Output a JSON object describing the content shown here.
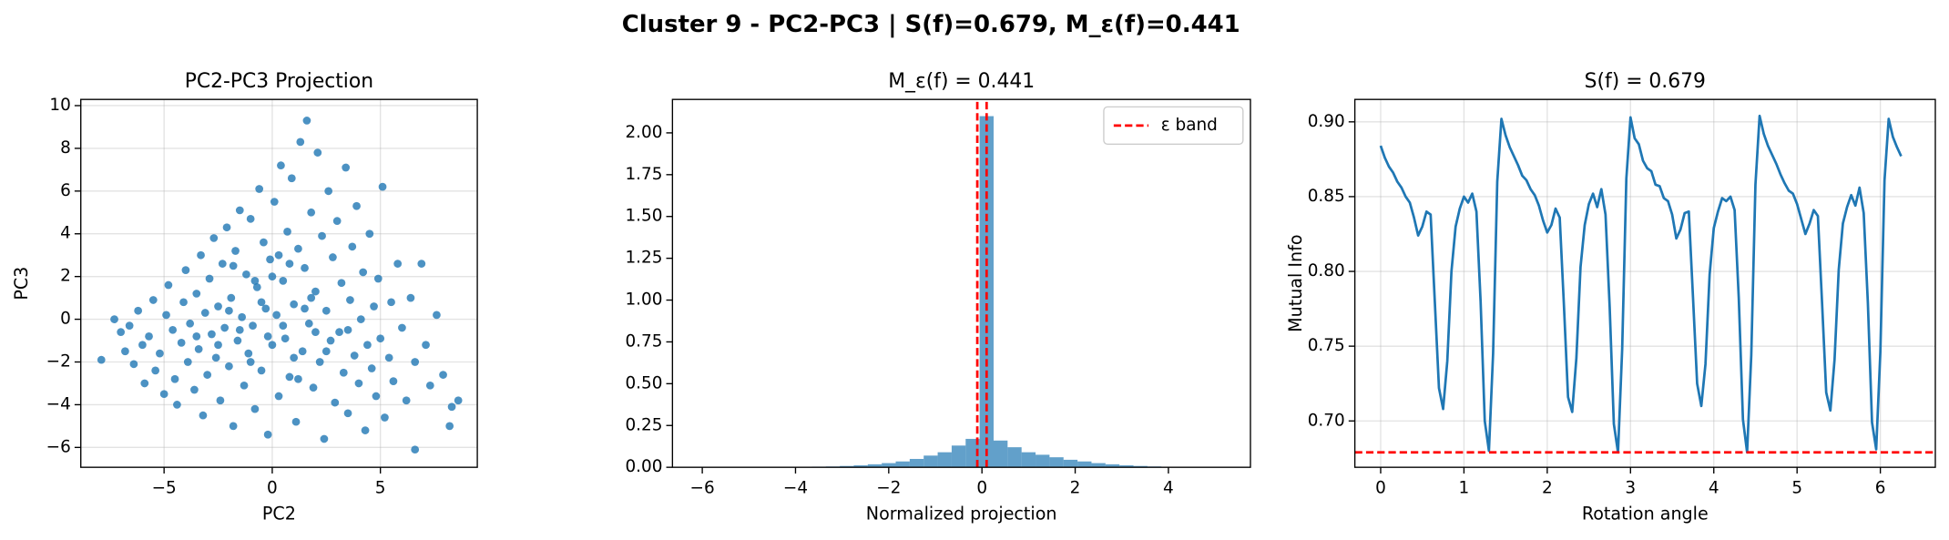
{
  "title": "Cluster 9 - PC2-PC3 | S(f)=0.679, M_ε(f)=0.441",
  "chart_data": [
    {
      "type": "scatter",
      "title": "PC2-PC3 Projection",
      "xlabel": "PC2",
      "ylabel": "PC3",
      "color": "#1f77b4",
      "grid": true,
      "xlim": [
        -8.85,
        9.48
      ],
      "ylim": [
        -6.93,
        10.29
      ],
      "xticks": [
        {
          "value": -5,
          "label": "−5"
        },
        0,
        5
      ],
      "yticks": [
        {
          "value": -6,
          "label": "−6"
        },
        {
          "value": -4,
          "label": "−4"
        },
        {
          "value": -2,
          "label": "−2"
        },
        0,
        2,
        4,
        6,
        8,
        10
      ],
      "x": [
        -7.9,
        -7.3,
        -7.0,
        -6.8,
        -6.6,
        -6.4,
        -6.2,
        -6.0,
        -5.9,
        -5.7,
        -5.5,
        -5.4,
        -5.2,
        -5.0,
        -4.9,
        -4.8,
        -4.6,
        -4.5,
        -4.4,
        -4.2,
        -4.1,
        -4.0,
        -3.9,
        -3.8,
        -3.6,
        -3.5,
        -3.4,
        -3.3,
        -3.2,
        -3.1,
        -3.0,
        -2.9,
        -2.8,
        -2.7,
        -2.6,
        -2.5,
        -2.4,
        -2.3,
        -2.2,
        -2.1,
        -2.0,
        -1.9,
        -1.8,
        -1.7,
        -1.6,
        -1.5,
        -1.4,
        -1.3,
        -1.2,
        -1.1,
        -1.0,
        -0.9,
        -0.8,
        -0.7,
        -0.6,
        -0.5,
        -0.4,
        -0.3,
        -0.2,
        -0.1,
        0.0,
        0.1,
        0.2,
        0.3,
        0.4,
        0.5,
        0.6,
        0.7,
        0.8,
        0.9,
        1.0,
        1.1,
        1.2,
        1.3,
        1.4,
        1.5,
        1.6,
        1.7,
        1.8,
        1.9,
        2.0,
        2.1,
        2.2,
        2.3,
        2.4,
        2.5,
        2.6,
        2.7,
        2.8,
        2.9,
        3.0,
        3.1,
        3.2,
        3.3,
        3.4,
        3.5,
        3.6,
        3.7,
        3.8,
        3.9,
        4.0,
        4.1,
        4.2,
        4.3,
        4.4,
        4.5,
        4.6,
        4.7,
        4.8,
        4.9,
        5.0,
        5.1,
        5.2,
        5.4,
        5.5,
        5.6,
        5.8,
        6.0,
        6.2,
        6.4,
        6.6,
        6.6,
        6.9,
        7.1,
        7.3,
        7.6,
        7.9,
        8.3,
        8.6,
        8.2,
        -1.5,
        -0.5,
        0.5,
        1.5,
        -2.5,
        2.5,
        0.0,
        -1.0,
        1.0,
        -3.5,
        3.5,
        0.3,
        -0.8,
        1.8,
        -2.0,
        2.0,
        -0.2,
        0.8,
        -1.8,
        1.2
      ],
      "y": [
        -1.9,
        0.0,
        -0.6,
        -1.5,
        -0.3,
        -2.1,
        0.4,
        -1.2,
        -3.0,
        -0.8,
        0.9,
        -2.4,
        -1.6,
        -3.5,
        0.2,
        1.6,
        -0.5,
        -2.8,
        -4.0,
        -1.1,
        0.8,
        2.3,
        -2.0,
        -0.2,
        -3.3,
        1.2,
        -1.4,
        3.0,
        -4.5,
        0.3,
        -2.6,
        1.9,
        -0.7,
        3.8,
        -1.8,
        0.6,
        -3.8,
        2.6,
        -0.4,
        4.3,
        -2.2,
        1.0,
        -5.0,
        3.2,
        -1.0,
        5.1,
        0.1,
        -3.1,
        2.1,
        -1.6,
        4.7,
        -0.3,
        -4.2,
        1.5,
        6.1,
        -2.4,
        3.6,
        0.5,
        -5.4,
        2.8,
        -1.2,
        5.5,
        0.2,
        -3.6,
        7.2,
        1.8,
        -0.9,
        4.1,
        -2.7,
        6.6,
        0.7,
        -4.8,
        3.3,
        8.3,
        -1.5,
        2.4,
        9.3,
        -0.2,
        5.0,
        -3.2,
        1.3,
        7.8,
        -2.0,
        3.9,
        -5.6,
        0.4,
        6.0,
        -1.0,
        2.9,
        -3.9,
        4.6,
        -0.6,
        1.7,
        -2.5,
        7.1,
        -4.4,
        0.9,
        3.4,
        -1.7,
        5.3,
        -3.0,
        0.0,
        2.2,
        -5.2,
        -1.2,
        4.0,
        -2.3,
        0.6,
        -3.6,
        1.9,
        -0.9,
        6.2,
        -4.6,
        -1.8,
        0.8,
        -2.9,
        2.6,
        -0.4,
        -3.8,
        1.0,
        -2.0,
        -6.1,
        2.6,
        -1.2,
        -3.1,
        0.2,
        -2.6,
        -4.1,
        -3.8,
        -5.0,
        -0.5,
        0.8,
        -0.3,
        0.5,
        -1.2,
        -1.5,
        2.0,
        -2.0,
        -1.8,
        -0.8,
        -0.5,
        3.0,
        1.8,
        1.0,
        0.4,
        -0.6,
        -0.8,
        2.6,
        2.5,
        -2.8
      ]
    },
    {
      "type": "histogram",
      "title": "M_ε(f) = 0.441",
      "xlabel": "Normalized projection",
      "color": "#1f77b4",
      "grid": false,
      "xlim": [
        -6.64,
        5.76
      ],
      "ylim": [
        0,
        2.2
      ],
      "xticks": [
        {
          "value": -6,
          "label": "−6"
        },
        {
          "value": -4,
          "label": "−4"
        },
        {
          "value": -2,
          "label": "−2"
        },
        0,
        2,
        4
      ],
      "yticks": [
        {
          "value": 0,
          "label": "0.00"
        },
        0.25,
        {
          "value": 0.5,
          "label": "0.50"
        },
        0.75,
        {
          "value": 1,
          "label": "1.00"
        },
        1.25,
        {
          "value": 1.5,
          "label": "1.50"
        },
        1.75,
        {
          "value": 2,
          "label": "2.00"
        }
      ],
      "bins": [
        -6.35,
        -6.05,
        -5.75,
        -5.45,
        -5.15,
        -4.85,
        -4.55,
        -4.25,
        -3.95,
        -3.65,
        -3.35,
        -3.05,
        -2.75,
        -2.45,
        -2.15,
        -1.85,
        -1.55,
        -1.25,
        -0.95,
        -0.65,
        -0.35,
        -0.05,
        0.25,
        0.55,
        0.85,
        1.15,
        1.45,
        1.75,
        2.05,
        2.35,
        2.65,
        2.95,
        3.25,
        3.55,
        3.85,
        4.15,
        4.45,
        4.75,
        5.05,
        5.35,
        5.65
      ],
      "values": [
        0,
        0,
        0,
        0,
        0,
        0.001,
        0.001,
        0.002,
        0.003,
        0.004,
        0.005,
        0.008,
        0.012,
        0.018,
        0.025,
        0.035,
        0.05,
        0.07,
        0.09,
        0.13,
        0.17,
        2.1,
        0.16,
        0.12,
        0.09,
        0.075,
        0.06,
        0.045,
        0.035,
        0.025,
        0.018,
        0.012,
        0.008,
        0.005,
        0.003,
        0.002,
        0.001,
        0.001,
        0,
        0
      ],
      "reference_lines": {
        "name": "ε band",
        "color": "#ff0000",
        "values": [
          -0.1,
          0.1
        ]
      },
      "legend": "upper right"
    },
    {
      "type": "line",
      "title": "S(f) = 0.679",
      "xlabel": "Rotation angle",
      "ylabel": "Mutual Info",
      "color": "#1f77b4",
      "grid": true,
      "xlim": [
        -0.31,
        6.66
      ],
      "ylim": [
        0.669,
        0.915
      ],
      "xticks": [
        0,
        1,
        2,
        3,
        4,
        5,
        6
      ],
      "yticks": [
        {
          "value": 0.7,
          "label": "0.70"
        },
        0.75,
        {
          "value": 0.8,
          "label": "0.80"
        },
        0.85,
        {
          "value": 0.9,
          "label": "0.90"
        }
      ],
      "x": [
        0,
        0.05,
        0.1,
        0.15,
        0.2,
        0.25,
        0.3,
        0.35,
        0.4,
        0.45,
        0.5,
        0.55,
        0.6,
        0.65,
        0.7,
        0.75,
        0.8,
        0.85,
        0.9,
        0.95,
        1,
        1.05,
        1.1,
        1.15,
        1.2,
        1.25,
        1.3,
        1.35,
        1.4,
        1.45,
        1.5,
        1.55,
        1.6,
        1.65,
        1.7,
        1.75,
        1.8,
        1.85,
        1.9,
        1.95,
        2,
        2.05,
        2.1,
        2.15,
        2.2,
        2.25,
        2.3,
        2.35,
        2.4,
        2.45,
        2.5,
        2.55,
        2.6,
        2.65,
        2.7,
        2.75,
        2.8,
        2.85,
        2.9,
        2.95,
        3,
        3.05,
        3.1,
        3.15,
        3.2,
        3.25,
        3.3,
        3.35,
        3.4,
        3.45,
        3.5,
        3.55,
        3.6,
        3.65,
        3.7,
        3.75,
        3.8,
        3.85,
        3.9,
        3.95,
        4,
        4.05,
        4.1,
        4.15,
        4.2,
        4.25,
        4.3,
        4.35,
        4.4,
        4.45,
        4.5,
        4.55,
        4.6,
        4.65,
        4.7,
        4.75,
        4.8,
        4.85,
        4.9,
        4.95,
        5,
        5.05,
        5.1,
        5.15,
        5.2,
        5.25,
        5.3,
        5.35,
        5.4,
        5.45,
        5.5,
        5.55,
        5.6,
        5.65,
        5.7,
        5.75,
        5.8,
        5.85,
        5.9,
        5.95,
        6,
        6.05,
        6.1,
        6.15,
        6.2,
        6.25
      ],
      "values": [
        0.884,
        0.876,
        0.87,
        0.866,
        0.86,
        0.856,
        0.85,
        0.846,
        0.836,
        0.824,
        0.83,
        0.84,
        0.838,
        0.78,
        0.722,
        0.708,
        0.74,
        0.8,
        0.83,
        0.842,
        0.85,
        0.846,
        0.852,
        0.84,
        0.78,
        0.7,
        0.68,
        0.745,
        0.86,
        0.902,
        0.891,
        0.883,
        0.877,
        0.871,
        0.864,
        0.861,
        0.855,
        0.851,
        0.844,
        0.834,
        0.826,
        0.831,
        0.842,
        0.836,
        0.778,
        0.716,
        0.706,
        0.742,
        0.803,
        0.831,
        0.845,
        0.852,
        0.843,
        0.855,
        0.838,
        0.776,
        0.698,
        0.679,
        0.748,
        0.862,
        0.903,
        0.889,
        0.885,
        0.874,
        0.869,
        0.867,
        0.858,
        0.857,
        0.849,
        0.847,
        0.838,
        0.822,
        0.828,
        0.839,
        0.84,
        0.783,
        0.725,
        0.71,
        0.738,
        0.798,
        0.829,
        0.84,
        0.849,
        0.847,
        0.85,
        0.841,
        0.782,
        0.701,
        0.679,
        0.744,
        0.858,
        0.904,
        0.892,
        0.884,
        0.878,
        0.872,
        0.865,
        0.859,
        0.854,
        0.852,
        0.845,
        0.835,
        0.825,
        0.832,
        0.841,
        0.837,
        0.779,
        0.719,
        0.707,
        0.741,
        0.801,
        0.832,
        0.843,
        0.851,
        0.844,
        0.856,
        0.839,
        0.779,
        0.699,
        0.681,
        0.746,
        0.861,
        0.902,
        0.89,
        0.883,
        0.877
      ],
      "reference_line": {
        "value": 0.679,
        "color": "#ff0000"
      }
    }
  ]
}
